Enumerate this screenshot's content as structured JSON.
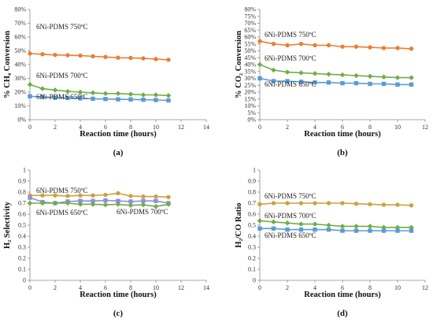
{
  "figure": {
    "panels": [
      {
        "id": "a",
        "label": "(a)"
      },
      {
        "id": "b",
        "label": "(b)"
      },
      {
        "id": "c",
        "label": "(c)"
      },
      {
        "id": "d",
        "label": "(d)"
      }
    ]
  },
  "chart_data": [
    {
      "type": "line",
      "panel_label": "(a)",
      "title": "",
      "xlabel": "Reaction time (hours)",
      "ylabel": "% CH₄ Conversion",
      "xlim": [
        0,
        14
      ],
      "ylim": [
        0,
        80
      ],
      "x_ticks": [
        "0",
        "2",
        "4",
        "6",
        "8",
        "10",
        "12",
        "14"
      ],
      "y_ticks": [
        "0%",
        "10%",
        "20%",
        "30%",
        "40%",
        "50%",
        "60%",
        "70%",
        "80%"
      ],
      "grid": false,
      "legend": "none",
      "x": [
        0,
        1,
        2,
        3,
        4,
        5,
        6,
        7,
        8,
        9,
        10,
        11
      ],
      "series": [
        {
          "name": "6Ni-PDMS 750ºC",
          "color": "#ED7D31",
          "marker": "circle",
          "values": [
            48,
            47.5,
            47,
            46.8,
            46.5,
            46,
            45.5,
            45,
            44.8,
            44.5,
            44,
            43.5
          ]
        },
        {
          "name": "6Ni-PDMS 700ºC",
          "color": "#70AD47",
          "marker": "diamond",
          "values": [
            25.5,
            22.5,
            21.5,
            20.5,
            20,
            19.5,
            19,
            19,
            18.5,
            18,
            18,
            17.5
          ]
        },
        {
          "name": "6Ni-PDMS 650ºC",
          "color": "#5B9BD5",
          "marker": "square",
          "values": [
            17,
            16.5,
            16,
            15.8,
            15.5,
            15.2,
            15,
            14.8,
            14.7,
            14.5,
            14.3,
            14
          ]
        }
      ]
    },
    {
      "type": "line",
      "panel_label": "(b)",
      "title": "",
      "xlabel": "Reaction time (hours)",
      "ylabel": "% CO₂ Conversion",
      "xlim": [
        0,
        12
      ],
      "ylim": [
        0,
        80
      ],
      "x_ticks": [
        "0",
        "2",
        "4",
        "6",
        "8",
        "10",
        "12"
      ],
      "y_ticks": [
        "0%",
        "5%",
        "10%",
        "15%",
        "20%",
        "25%",
        "30%",
        "35%",
        "40%",
        "45%",
        "50%",
        "55%",
        "60%",
        "65%",
        "70%",
        "75%",
        "80%"
      ],
      "grid": false,
      "legend": "none",
      "x": [
        0,
        1,
        2,
        3,
        4,
        5,
        6,
        7,
        8,
        9,
        10,
        11
      ],
      "series": [
        {
          "name": "6Ni-PDMS 750ºC",
          "color": "#ED7D31",
          "marker": "circle",
          "values": [
            57,
            55,
            54,
            55,
            54,
            54,
            53,
            53,
            52.5,
            52,
            52,
            51.5
          ]
        },
        {
          "name": "6Ni-PDMS 700ºC",
          "color": "#70AD47",
          "marker": "diamond",
          "values": [
            40,
            36,
            34.5,
            34,
            33.5,
            33,
            32.5,
            32,
            31.5,
            31,
            30.5,
            30.5
          ]
        },
        {
          "name": "6Ni-PDMS 650ºC",
          "color": "#5B9BD5",
          "marker": "square",
          "values": [
            30,
            28,
            28,
            27.5,
            27,
            27,
            26.5,
            26.5,
            26,
            26,
            25.5,
            25.5
          ]
        }
      ]
    },
    {
      "type": "line",
      "panel_label": "(c)",
      "title": "",
      "xlabel": "Reaction time (hours)",
      "ylabel": "H₂ Selectivity",
      "xlim": [
        0,
        14
      ],
      "ylim": [
        0,
        1
      ],
      "x_ticks": [
        "0",
        "2",
        "4",
        "6",
        "8",
        "10",
        "12",
        "14"
      ],
      "y_ticks": [
        "0",
        "0.1",
        "0.2",
        "0.3",
        "0.4",
        "0.5",
        "0.6",
        "0.7",
        "0.8",
        "0.9",
        "1"
      ],
      "grid": false,
      "legend": "none",
      "x": [
        0,
        1,
        2,
        3,
        4,
        5,
        6,
        7,
        8,
        9,
        10,
        11
      ],
      "series": [
        {
          "name": "6Ni-PDMS 750ºC",
          "color": "#C9A33D",
          "marker": "circle",
          "values": [
            0.77,
            0.77,
            0.77,
            0.765,
            0.77,
            0.77,
            0.775,
            0.79,
            0.765,
            0.76,
            0.76,
            0.755
          ]
        },
        {
          "name": "6Ni-PDMS 650ºC",
          "color": "#8E8EE0",
          "marker": "square",
          "values": [
            0.75,
            0.71,
            0.7,
            0.715,
            0.72,
            0.72,
            0.725,
            0.72,
            0.715,
            0.72,
            0.72,
            0.7
          ]
        },
        {
          "name": "6Ni-PDMS 700ºC",
          "color": "#70AD47",
          "marker": "diamond",
          "values": [
            0.7,
            0.7,
            0.7,
            0.7,
            0.69,
            0.69,
            0.685,
            0.69,
            0.68,
            0.685,
            0.67,
            0.69
          ]
        }
      ]
    },
    {
      "type": "line",
      "panel_label": "(d)",
      "title": "",
      "xlabel": "Reaction time (hours)",
      "ylabel": "H₂/CO Ratio",
      "xlim": [
        0,
        12
      ],
      "ylim": [
        0,
        1
      ],
      "x_ticks": [
        "0",
        "2",
        "4",
        "6",
        "8",
        "10",
        "12"
      ],
      "y_ticks": [
        "0",
        "0.1",
        "0.2",
        "0.3",
        "0.4",
        "0.5",
        "0.6",
        "0.7",
        "0.8",
        "0.9",
        "1"
      ],
      "grid": false,
      "legend": "none",
      "x": [
        0,
        1,
        2,
        3,
        4,
        5,
        6,
        7,
        8,
        9,
        10,
        11
      ],
      "series": [
        {
          "name": "6Ni-PDMS 750ºC",
          "color": "#C9A33D",
          "marker": "circle",
          "values": [
            0.69,
            0.7,
            0.7,
            0.7,
            0.7,
            0.7,
            0.7,
            0.695,
            0.69,
            0.685,
            0.685,
            0.68
          ]
        },
        {
          "name": "6Ni-PDMS 700ºC",
          "color": "#70AD47",
          "marker": "diamond",
          "values": [
            0.54,
            0.53,
            0.52,
            0.51,
            0.51,
            0.5,
            0.49,
            0.49,
            0.49,
            0.48,
            0.48,
            0.48
          ]
        },
        {
          "name": "6Ni-PDMS 650ºC",
          "color": "#5B9BD5",
          "marker": "square",
          "values": [
            0.47,
            0.47,
            0.46,
            0.46,
            0.46,
            0.46,
            0.45,
            0.45,
            0.45,
            0.45,
            0.45,
            0.45
          ]
        }
      ]
    }
  ]
}
